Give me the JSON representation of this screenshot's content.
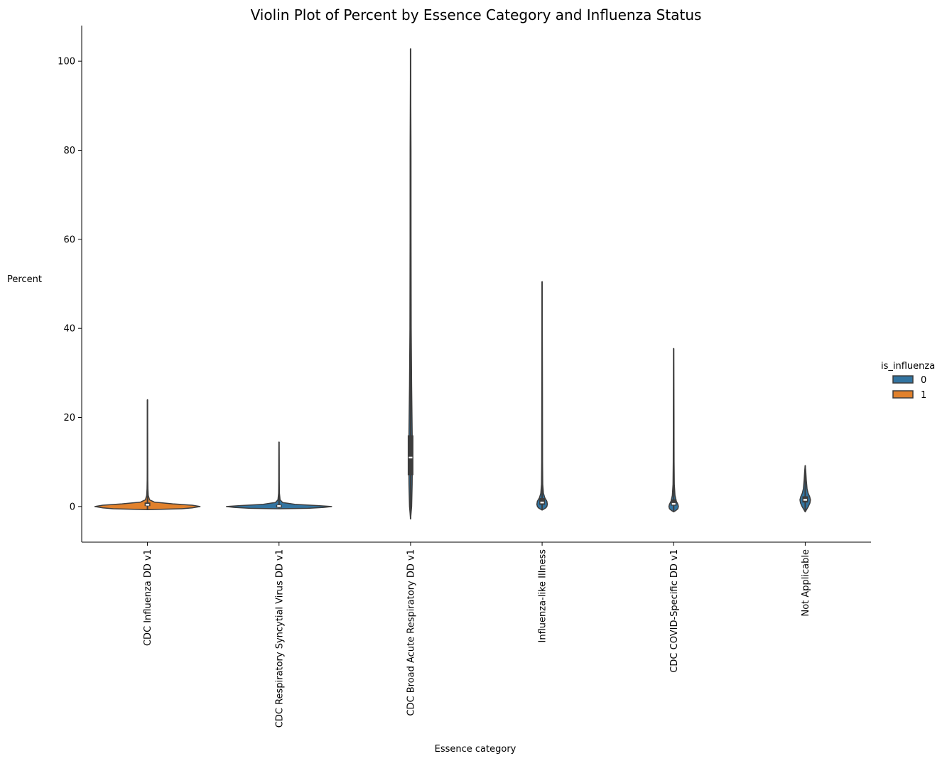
{
  "chart_data": {
    "type": "violin",
    "title": "Violin Plot of Percent by Essence Category and Influenza Status",
    "xlabel": "Essence category",
    "ylabel": "Percent",
    "ylim": [
      -8,
      108
    ],
    "yticks": [
      0,
      20,
      40,
      60,
      80,
      100
    ],
    "grid": false,
    "legend": {
      "title": "is_influenza",
      "placement": "right",
      "entries": [
        {
          "label": "0",
          "color": "#3274a1"
        },
        {
          "label": "1",
          "color": "#e1812c"
        }
      ]
    },
    "categories": [
      "CDC Influenza DD v1",
      "CDC Respiratory Syncytial Virus DD v1",
      "CDC Broad Acute Respiratory DD v1",
      "Influenza-like Illness",
      "CDC COVID-Specific DD v1",
      "Not Applicable"
    ],
    "violins": [
      {
        "category": "CDC Influenza DD v1",
        "group": "1",
        "min": -0.7,
        "max": 24,
        "q1": 0.1,
        "median": 0.4,
        "q3": 0.9,
        "profile": [
          [
            -0.7,
            0.0
          ],
          [
            -0.5,
            0.65
          ],
          [
            -0.3,
            0.85
          ],
          [
            0,
            1.0
          ],
          [
            0.3,
            0.85
          ],
          [
            0.6,
            0.48
          ],
          [
            1.0,
            0.13
          ],
          [
            1.5,
            0.04
          ],
          [
            2.5,
            0.015
          ],
          [
            4,
            0.008
          ],
          [
            6,
            0.005
          ],
          [
            10,
            0.004
          ],
          [
            16,
            0.003
          ],
          [
            24,
            0.0
          ]
        ]
      },
      {
        "category": "CDC Respiratory Syncytial Virus DD v1",
        "group": "0",
        "min": -0.5,
        "max": 14.5,
        "q1": 0.0,
        "median": 0.1,
        "q3": 0.4,
        "profile": [
          [
            -0.5,
            0.0
          ],
          [
            -0.4,
            0.55
          ],
          [
            -0.2,
            0.85
          ],
          [
            0,
            1.0
          ],
          [
            0.2,
            0.75
          ],
          [
            0.5,
            0.3
          ],
          [
            0.9,
            0.07
          ],
          [
            1.5,
            0.02
          ],
          [
            3,
            0.008
          ],
          [
            6,
            0.004
          ],
          [
            10,
            0.003
          ],
          [
            14.5,
            0.0
          ]
        ]
      },
      {
        "category": "CDC Broad Acute Respiratory DD v1",
        "group": "0",
        "min": -2.8,
        "max": 102.8,
        "q1": 7,
        "median": 11,
        "q3": 16,
        "profile": [
          [
            -2.8,
            0.0
          ],
          [
            0,
            0.02
          ],
          [
            5,
            0.03
          ],
          [
            11,
            0.035
          ],
          [
            17,
            0.03
          ],
          [
            27,
            0.02
          ],
          [
            40,
            0.012
          ],
          [
            60,
            0.009
          ],
          [
            80,
            0.008
          ],
          [
            102.8,
            0.0
          ]
        ]
      },
      {
        "category": "Influenza-like Illness",
        "group": "0",
        "min": -0.8,
        "max": 50.5,
        "q1": 0.4,
        "median": 0.9,
        "q3": 1.9,
        "profile": [
          [
            -0.8,
            0.0
          ],
          [
            -0.6,
            0.03
          ],
          [
            -0.3,
            0.07
          ],
          [
            0,
            0.09
          ],
          [
            0.5,
            0.1
          ],
          [
            1.2,
            0.09
          ],
          [
            2.0,
            0.05
          ],
          [
            3.0,
            0.025
          ],
          [
            5,
            0.012
          ],
          [
            10,
            0.008
          ],
          [
            25,
            0.006
          ],
          [
            50.5,
            0.0
          ]
        ]
      },
      {
        "category": "CDC COVID-Specific DD v1",
        "group": "0",
        "min": -1.2,
        "max": 35.5,
        "q1": 0.2,
        "median": 0.6,
        "q3": 1.6,
        "profile": [
          [
            -1.2,
            0.0
          ],
          [
            -0.9,
            0.04
          ],
          [
            -0.5,
            0.08
          ],
          [
            0,
            0.09
          ],
          [
            0.5,
            0.08
          ],
          [
            1.2,
            0.05
          ],
          [
            2.5,
            0.025
          ],
          [
            5,
            0.012
          ],
          [
            10,
            0.008
          ],
          [
            20,
            0.006
          ],
          [
            35.5,
            0.0
          ]
        ]
      },
      {
        "category": "Not Applicable",
        "group": "0",
        "min": -1.2,
        "max": 9.2,
        "q1": 0.9,
        "median": 1.5,
        "q3": 2.3,
        "profile": [
          [
            -1.2,
            0.0
          ],
          [
            -0.8,
            0.02
          ],
          [
            0,
            0.06
          ],
          [
            0.8,
            0.09
          ],
          [
            1.5,
            0.1
          ],
          [
            2.2,
            0.085
          ],
          [
            3.0,
            0.055
          ],
          [
            4,
            0.035
          ],
          [
            6,
            0.02
          ],
          [
            8,
            0.01
          ],
          [
            9.2,
            0.0
          ]
        ]
      }
    ]
  }
}
